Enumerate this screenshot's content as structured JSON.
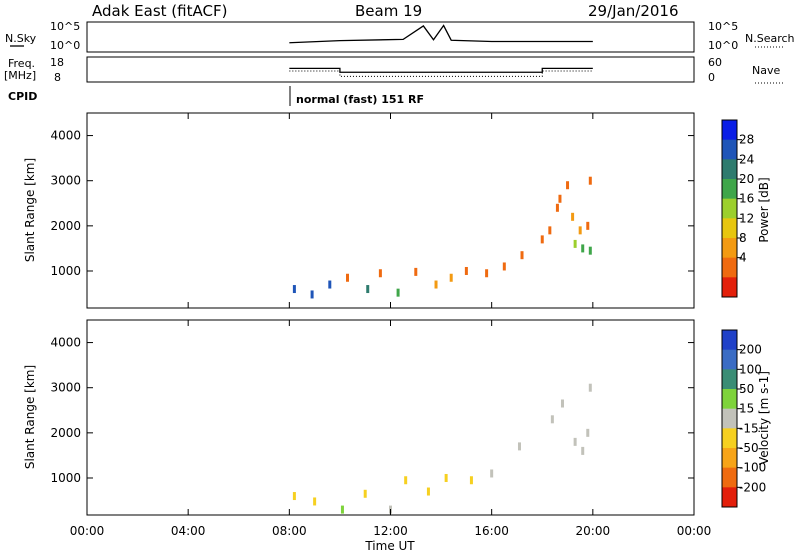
{
  "header": {
    "station": "Adak East (fitACF)",
    "beam": "Beam 19",
    "date": "29/Jan/2016"
  },
  "status_panels": {
    "nsky_label": "N.Sky",
    "nsky_ticks": [
      "10^5",
      "10^0"
    ],
    "nsearch_label": "N.Search",
    "freq_label_line1": "Freq.",
    "freq_label_line2": "[MHz]",
    "freq_ticks": [
      "18",
      "8"
    ],
    "nave_label": "Nave",
    "nave_ticks": [
      "60",
      "0"
    ],
    "cpid_label": "CPID",
    "cpid_text": "normal (fast) 151 RF"
  },
  "colorbars": {
    "power": {
      "label": "Power [dB]",
      "ticks": [
        "28",
        "24",
        "20",
        "16",
        "12",
        "8",
        "4"
      ],
      "colors": [
        "#0a1ee6",
        "#1f55b8",
        "#2e7b6e",
        "#3fa64a",
        "#9ccf2d",
        "#e7c60f",
        "#f39a12",
        "#ef6a10",
        "#e3200b"
      ]
    },
    "velocity": {
      "label": "Velocity [m s-1]",
      "ticks": [
        "200",
        "100",
        "50",
        "15",
        "-15",
        "-50",
        "-100",
        "-200"
      ],
      "colors": [
        "#2041c8",
        "#3a6cc4",
        "#3a8d75",
        "#7ed33b",
        "#c2c2ba",
        "#f6d020",
        "#f7a418",
        "#ef6b10",
        "#e31f0b"
      ]
    }
  },
  "chart_data": [
    {
      "type": "line",
      "title": "Beam 19",
      "panel": "N.Sky / N.Search",
      "xlabel": "Time UT",
      "x": [
        8.0,
        10.0,
        12.5,
        13.3,
        13.7,
        14.1,
        14.4,
        16.0,
        20.0
      ],
      "y": [
        0.3,
        0.8,
        1.1,
        4.3,
        1.0,
        4.4,
        0.9,
        0.6,
        0.6
      ],
      "yscale": "log",
      "ylim": [
        "10^0",
        "10^5"
      ]
    },
    {
      "type": "line",
      "panel": "Freq. / Nave",
      "xlabel": "Time UT",
      "series": [
        {
          "name": "Freq. [MHz]",
          "x": [
            8.0,
            10.0,
            10.0,
            18.0,
            18.0,
            20.0
          ],
          "y": [
            13.5,
            13.5,
            11.8,
            11.8,
            13.5,
            13.5
          ]
        },
        {
          "name": "Nave",
          "x": [
            8.0,
            10.0,
            10.0,
            18.0,
            18.0,
            20.0
          ],
          "y": [
            26,
            26,
            12,
            12,
            26,
            26
          ]
        }
      ],
      "ylim": [
        8,
        18
      ],
      "y2lim": [
        0,
        60
      ]
    },
    {
      "type": "scatter",
      "panel": "Power",
      "xlabel": "Time UT",
      "ylabel": "Slant Range [km]",
      "xlim": [
        0,
        24
      ],
      "ylim": [
        180,
        4500
      ],
      "xticks": [
        "00:00",
        "04:00",
        "08:00",
        "12:00",
        "16:00",
        "20:00",
        "00:00"
      ],
      "yticks": [
        1000,
        2000,
        3000,
        4000
      ],
      "colorbar_label": "Power [dB]",
      "clim": [
        0,
        32
      ],
      "points": [
        {
          "x": 8.2,
          "y": 600,
          "v": 28
        },
        {
          "x": 8.9,
          "y": 480,
          "v": 26
        },
        {
          "x": 9.6,
          "y": 700,
          "v": 25
        },
        {
          "x": 10.3,
          "y": 850,
          "v": 7
        },
        {
          "x": 11.1,
          "y": 600,
          "v": 24
        },
        {
          "x": 11.6,
          "y": 950,
          "v": 6
        },
        {
          "x": 12.3,
          "y": 520,
          "v": 20
        },
        {
          "x": 13.0,
          "y": 980,
          "v": 6
        },
        {
          "x": 13.8,
          "y": 700,
          "v": 8
        },
        {
          "x": 14.4,
          "y": 850,
          "v": 10
        },
        {
          "x": 15.0,
          "y": 1000,
          "v": 5
        },
        {
          "x": 15.8,
          "y": 950,
          "v": 6
        },
        {
          "x": 16.5,
          "y": 1100,
          "v": 5
        },
        {
          "x": 17.2,
          "y": 1350,
          "v": 4
        },
        {
          "x": 18.0,
          "y": 1700,
          "v": 7
        },
        {
          "x": 18.3,
          "y": 1900,
          "v": 4
        },
        {
          "x": 18.6,
          "y": 2400,
          "v": 5
        },
        {
          "x": 18.7,
          "y": 2600,
          "v": 5
        },
        {
          "x": 19.0,
          "y": 2900,
          "v": 5
        },
        {
          "x": 19.2,
          "y": 2200,
          "v": 8
        },
        {
          "x": 19.3,
          "y": 1600,
          "v": 15
        },
        {
          "x": 19.5,
          "y": 1900,
          "v": 10
        },
        {
          "x": 19.6,
          "y": 1500,
          "v": 18
        },
        {
          "x": 19.8,
          "y": 2000,
          "v": 7
        },
        {
          "x": 19.9,
          "y": 1450,
          "v": 20
        },
        {
          "x": 19.9,
          "y": 3000,
          "v": 6
        }
      ]
    },
    {
      "type": "scatter",
      "panel": "Velocity",
      "xlabel": "Time UT",
      "ylabel": "Slant Range [km]",
      "xlim": [
        0,
        24
      ],
      "ylim": [
        180,
        4500
      ],
      "xticks": [
        "00:00",
        "04:00",
        "08:00",
        "12:00",
        "16:00",
        "20:00",
        "00:00"
      ],
      "yticks": [
        1000,
        2000,
        3000,
        4000
      ],
      "colorbar_label": "Velocity [m s-1]",
      "clim": [
        -250,
        250
      ],
      "points": [
        {
          "x": 8.2,
          "y": 600,
          "v": -40
        },
        {
          "x": 9.0,
          "y": 480,
          "v": -60
        },
        {
          "x": 10.1,
          "y": 300,
          "v": 60
        },
        {
          "x": 11.0,
          "y": 650,
          "v": -40
        },
        {
          "x": 12.0,
          "y": 300,
          "v": -20
        },
        {
          "x": 12.6,
          "y": 950,
          "v": -45
        },
        {
          "x": 13.5,
          "y": 700,
          "v": -60
        },
        {
          "x": 14.2,
          "y": 1000,
          "v": -30
        },
        {
          "x": 15.2,
          "y": 950,
          "v": -80
        },
        {
          "x": 16.0,
          "y": 1100,
          "v": 0
        },
        {
          "x": 17.1,
          "y": 1700,
          "v": 0
        },
        {
          "x": 18.4,
          "y": 2300,
          "v": 0
        },
        {
          "x": 18.8,
          "y": 2650,
          "v": 0
        },
        {
          "x": 19.3,
          "y": 1800,
          "v": 0
        },
        {
          "x": 19.6,
          "y": 1600,
          "v": 0
        },
        {
          "x": 19.8,
          "y": 2000,
          "v": 0
        },
        {
          "x": 19.9,
          "y": 3000,
          "v": 0
        }
      ]
    }
  ]
}
